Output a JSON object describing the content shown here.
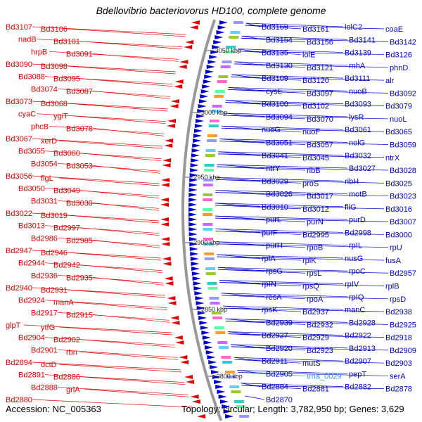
{
  "title": "Bdellovibrio bacteriovorus HD100, complete genome",
  "footer": {
    "accession": "Accession: NC_005363",
    "topology": "Topology: circular; Length: 3,782,950 bp; Genes: 3,629"
  },
  "colors": {
    "left_strand": "#e00000",
    "right_strand": "#0000c8",
    "highlight": "#3399ff",
    "axis": "#999999",
    "dot": "#22aa22"
  },
  "ticks": [
    "3050 kbp",
    "3000 kbp",
    "2950 kbp",
    "2900 kbp",
    "2850 kbp",
    "2800 kbp"
  ],
  "left_labels": [
    "Bd3107",
    "Bd3106",
    "nadB",
    "Bd3101",
    "hrpB",
    "Bd3091",
    "Bd3090",
    "Bd3098",
    "Bd3088",
    "Bd3095",
    "Bd3074",
    "Bd3087",
    "Bd3073",
    "Bd3068",
    "cyaC",
    "ygiT",
    "phcB",
    "Bd3078",
    "Bd3067",
    "xerD",
    "Bd3055",
    "Bd3060",
    "Bd3054",
    "Bd3053",
    "Bd3056",
    "flgL",
    "Bd3050",
    "Bd3049",
    "Bd3031",
    "Bd3030",
    "Bd3022",
    "Bd3019",
    "Bd3013",
    "Bd2997",
    "Bd2986",
    "Bd2985",
    "Bd2947",
    "Bd2946",
    "Bd2944",
    "Bd2942",
    "Bd2936",
    "Bd2935",
    "Bd2940",
    "Bd2931",
    "Bd2924",
    "manA",
    "Bd2917",
    "Bd2915",
    "glpT",
    "ytfG",
    "Bd2904",
    "Bd2902",
    "Bd2901",
    "rbn",
    "Bd2894",
    "dctD",
    "Bd2891",
    "Bd2886",
    "Bd2888",
    "grlA",
    "Bd2880"
  ],
  "right_labels": [
    "Bd3169",
    "Bd3161",
    "lolC2",
    "coaE",
    "Bd3154",
    "Bd3156",
    "Bd3141",
    "Bd3142",
    "Bd3135",
    "lolE",
    "Bd3139",
    "Bd3126",
    "Bd3130",
    "Bd3121",
    "rnhA",
    "phnD",
    "Bd3109",
    "Bd3120",
    "Bd3111",
    "alr",
    "cysE",
    "Bd3097",
    "nuoB",
    "Bd3092",
    "Bd3100",
    "Bd3102",
    "Bd3093",
    "Bd3079",
    "Bd3094",
    "Bd3070",
    "lysR",
    "nuoL",
    "nuoG",
    "nuoF",
    "Bd3061",
    "Bd3065",
    "Bd3051",
    "Bd3057",
    "nolG",
    "Bd3059",
    "Bd3041",
    "Bd3045",
    "Bd3032",
    "ntrX",
    "ntrY",
    "ribB",
    "Bd3027",
    "Bd3028",
    "Bd3029",
    "proS",
    "ribH",
    "Bd3025",
    "Bd3026",
    "Bd3017",
    "motB",
    "Bd3023",
    "Bd3010",
    "Bd3012",
    "fliG",
    "Bd3016",
    "purL",
    "purN",
    "purD",
    "Bd3007",
    "purF",
    "Bd2995",
    "Bd2998",
    "Bd3000",
    "purH",
    "rpoB",
    "rpIL",
    "rpU",
    "rplA",
    "rplK",
    "nusG",
    "fusA",
    "rpsG",
    "rpsL",
    "rpoC",
    "Bd2957",
    "rpIN",
    "rpsQ",
    "rpIV",
    "rplB",
    "resA",
    "rpoA",
    "rpIQ",
    "rpsD",
    "rpsK",
    "Bd2937",
    "manC",
    "Bd2938",
    "Bd2939",
    "Bd2932",
    "Bd2928",
    "Bd2925",
    "Bd2927",
    "Bd2929",
    "Bd2922",
    "Bd2918",
    "Bd2920",
    "Bd2923",
    "Bd2913",
    "Bd2909",
    "Bd2911",
    "mutS",
    "Bd2907",
    "Bd2903",
    "Bd2905",
    "trna_0029",
    "pepT",
    "serA",
    "Bd2884",
    "Bd2881",
    "Bd2882",
    "Bd2878",
    "Bd2870"
  ]
}
